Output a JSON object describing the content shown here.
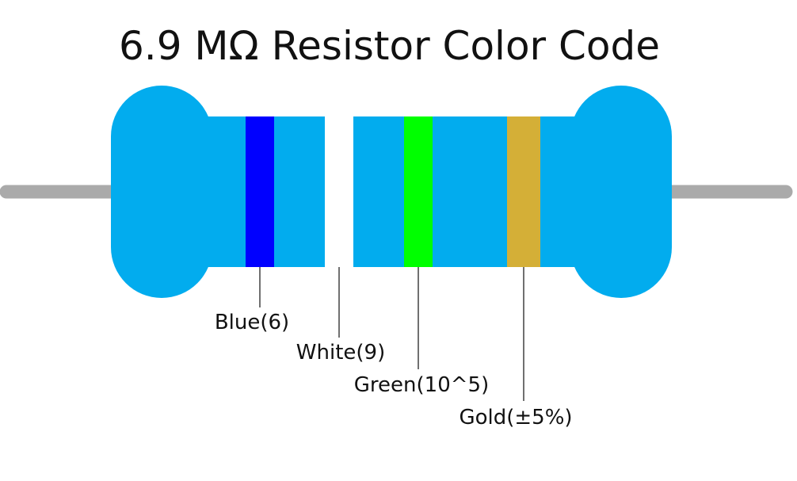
{
  "title": "6.9 MΩ Resistor Color Code",
  "colors": {
    "body": "#02acee",
    "lead": "#aaaaaa",
    "callout_line": "#111111",
    "label_text": "#111111"
  },
  "bands": [
    {
      "name": "band-blue",
      "color": "#0000ff",
      "label": "Blue(6)"
    },
    {
      "name": "band-white",
      "color": "#ffffff",
      "label": "White(9)"
    },
    {
      "name": "band-green",
      "color": "#00ff00",
      "label": "Green(10^5)"
    },
    {
      "name": "band-gold",
      "color": "#d4af37",
      "label": "Gold(±5%)"
    }
  ]
}
